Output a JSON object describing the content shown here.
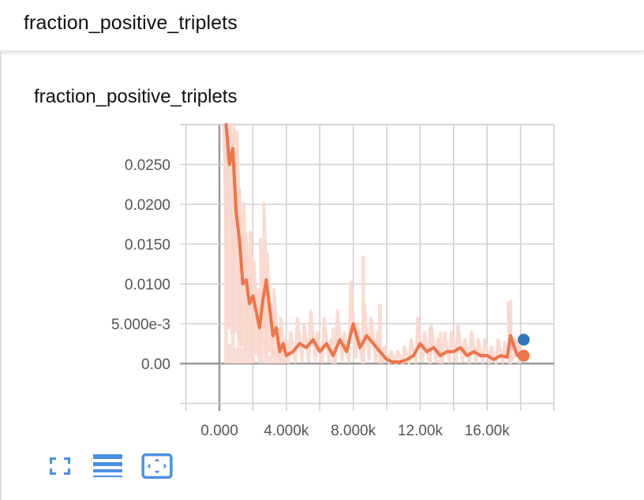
{
  "header": {
    "title": "fraction_positive_triplets"
  },
  "card": {
    "title": "fraction_positive_triplets",
    "toolbar": [
      {
        "name": "fullscreen-button",
        "icon": "expand-icon"
      },
      {
        "name": "toggle-log-scale-button",
        "icon": "list-lines-icon"
      },
      {
        "name": "fit-domain-button",
        "icon": "fit-to-data-icon"
      }
    ]
  },
  "colors": {
    "series_smoothed": "#ef7448",
    "series_raw": "#f9d7cc",
    "other_run_marker": "#2f74c0",
    "grid": "#cfcfcf",
    "axis": "#999999",
    "icon_accent": "#4a90e2"
  },
  "chart_data": {
    "type": "line",
    "title": "fraction_positive_triplets",
    "xlabel": "",
    "ylabel": "",
    "x_ticks": [
      "0.000",
      "4.000k",
      "8.000k",
      "12.00k",
      "16.00k"
    ],
    "y_ticks": [
      "0.00",
      "5.000e-3",
      "0.0100",
      "0.0150",
      "0.0200",
      "0.0250"
    ],
    "xlim": [
      -2000,
      20000
    ],
    "ylim": [
      -0.005,
      0.03
    ],
    "grid": true,
    "legend": null,
    "series": [
      {
        "name": "smoothed",
        "x": [
          400,
          600,
          800,
          1000,
          1200,
          1400,
          1600,
          1800,
          2000,
          2200,
          2400,
          2600,
          2800,
          3000,
          3200,
          3400,
          3600,
          3800,
          4000,
          4400,
          4800,
          5200,
          5600,
          6000,
          6400,
          6800,
          7200,
          7600,
          8000,
          8400,
          8800,
          9200,
          9600,
          10000,
          10400,
          10800,
          11200,
          11600,
          12000,
          12400,
          12800,
          13200,
          13600,
          14000,
          14400,
          14800,
          15200,
          15600,
          16000,
          16400,
          16800,
          17200,
          17400,
          17800,
          18000
        ],
        "y": [
          0.03,
          0.025,
          0.027,
          0.019,
          0.0155,
          0.01,
          0.0105,
          0.0075,
          0.0085,
          0.0065,
          0.0045,
          0.008,
          0.0105,
          0.007,
          0.0035,
          0.0045,
          0.0015,
          0.0025,
          0.001,
          0.0015,
          0.0025,
          0.002,
          0.003,
          0.0015,
          0.0025,
          0.001,
          0.003,
          0.0015,
          0.005,
          0.002,
          0.0035,
          0.0025,
          0.0015,
          0.0005,
          0.0002,
          0.0002,
          0.0005,
          0.001,
          0.0025,
          0.0015,
          0.002,
          0.001,
          0.0015,
          0.0015,
          0.002,
          0.001,
          0.0015,
          0.001,
          0.001,
          0.0005,
          0.001,
          0.0008,
          0.0035,
          0.001,
          0.001
        ]
      },
      {
        "name": "raw (faded)",
        "x": [
          400,
          600,
          800,
          1000,
          1200,
          1400,
          1600,
          1800,
          2000,
          2200,
          2400,
          2600,
          2800,
          3000,
          3200,
          3400,
          3600,
          3800,
          4000,
          6800,
          8600,
          9600,
          12600,
          13200,
          17400
        ],
        "y": [
          0.028,
          0.0025,
          0.029,
          0.002,
          0.022,
          0.002,
          0.0165,
          0.0015,
          0.012,
          0.0,
          0.0095,
          0.0005,
          0.0105,
          0.001,
          0.007,
          0.0003,
          0.0045,
          0.0005,
          0.003,
          0.0045,
          0.0135,
          0.0075,
          0.0045,
          0.004,
          0.008
        ]
      }
    ],
    "end_markers": [
      {
        "run": "blue",
        "x": 18000,
        "y": 0.003,
        "color": "#2f74c0"
      },
      {
        "run": "orange",
        "x": 18000,
        "y": 0.001,
        "color": "#ef7448"
      }
    ]
  }
}
